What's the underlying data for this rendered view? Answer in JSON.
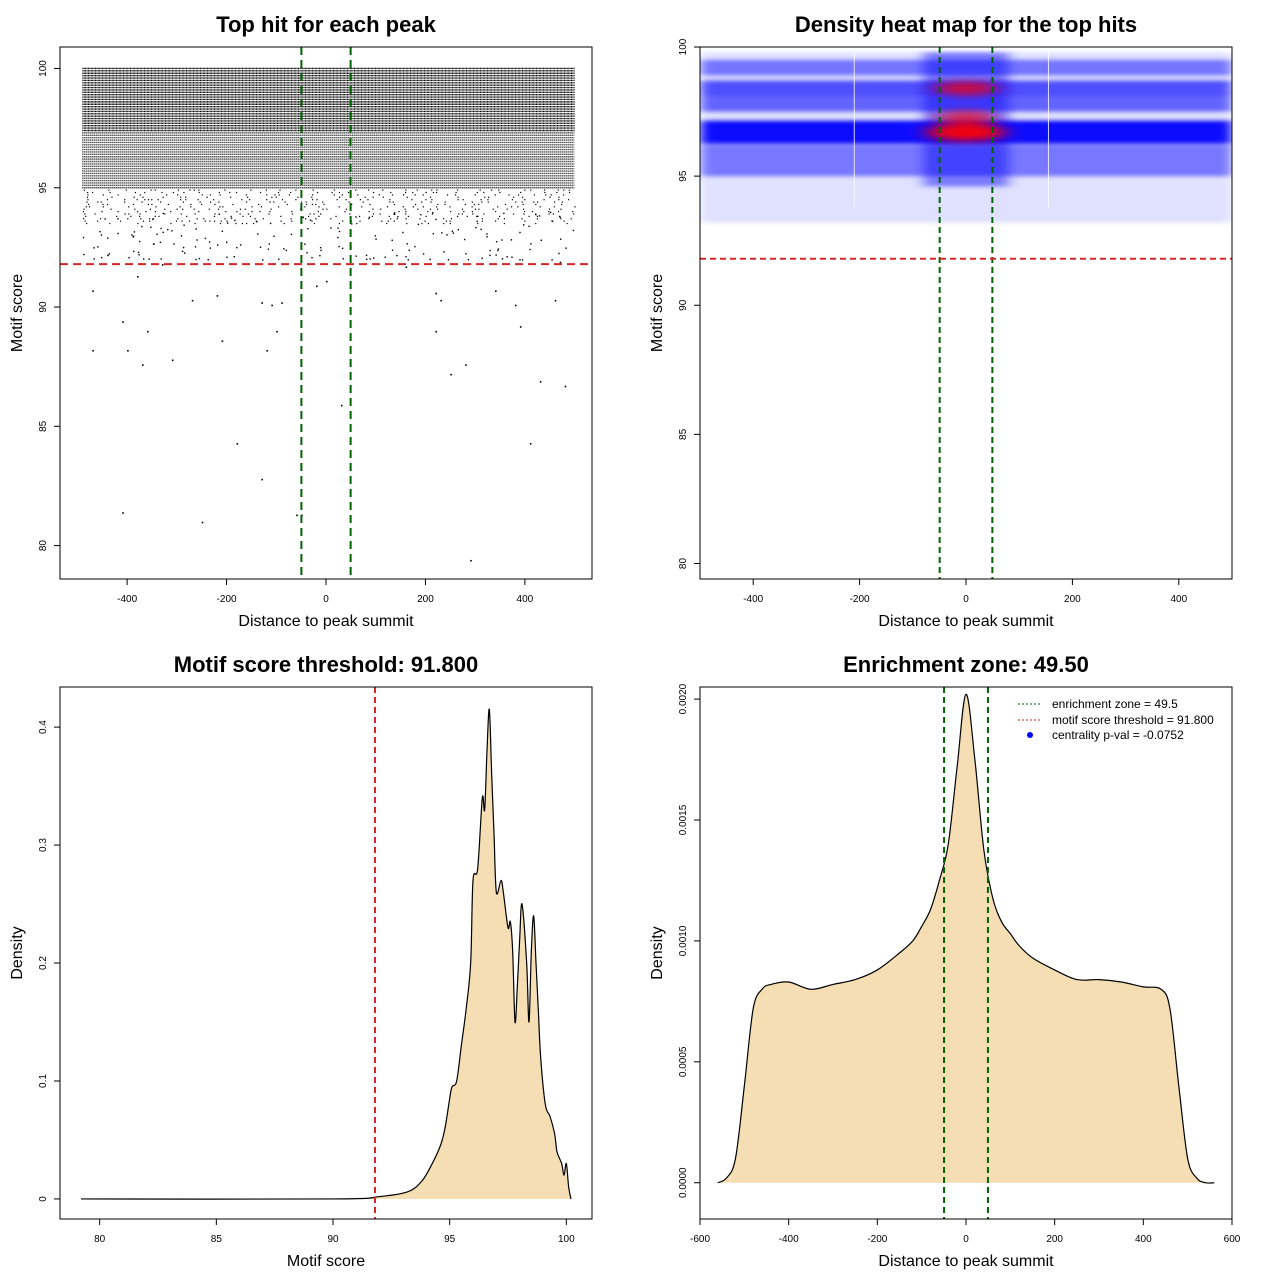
{
  "colors": {
    "green_line": "#006400",
    "red_line": "#d62728",
    "fill": "#f5deb3",
    "heat_low": "#0000ff",
    "heat_high": "#ff0000"
  },
  "chart_data": [
    {
      "id": "scatter",
      "type": "scatter",
      "title": "Top hit for each peak",
      "xlabel": "Distance to peak summit",
      "ylabel": "Motif score",
      "xlim": [
        -535,
        535
      ],
      "ylim": [
        78.6,
        100.9
      ],
      "xticks": [
        -400,
        -200,
        0,
        200,
        400
      ],
      "yticks": [
        80,
        85,
        90,
        95,
        100
      ],
      "dense_region": {
        "x": [
          -490,
          500
        ],
        "y_top": 100,
        "y_bottom": 93.5
      },
      "sparse_points": [
        [
          -470,
          90.7
        ],
        [
          -470,
          88.2
        ],
        [
          -410,
          89.4
        ],
        [
          -400,
          88.2
        ],
        [
          -380,
          91.3
        ],
        [
          -370,
          87.6
        ],
        [
          -360,
          89.0
        ],
        [
          -310,
          87.8
        ],
        [
          -270,
          90.3
        ],
        [
          -220,
          90.5
        ],
        [
          -210,
          88.6
        ],
        [
          -130,
          90.2
        ],
        [
          -110,
          90.1
        ],
        [
          -100,
          89.0
        ],
        [
          -90,
          90.2
        ],
        [
          -120,
          88.2
        ],
        [
          -180,
          84.3
        ],
        [
          -130,
          82.8
        ],
        [
          -60,
          81.3
        ],
        [
          -50,
          81.3
        ],
        [
          -410,
          81.4
        ],
        [
          -250,
          81.0
        ],
        [
          30,
          85.9
        ],
        [
          -20,
          90.9
        ],
        [
          0,
          91.1
        ],
        [
          220,
          90.6
        ],
        [
          230,
          90.3
        ],
        [
          220,
          89.0
        ],
        [
          250,
          87.2
        ],
        [
          280,
          87.6
        ],
        [
          340,
          90.7
        ],
        [
          380,
          90.1
        ],
        [
          390,
          89.2
        ],
        [
          430,
          86.9
        ],
        [
          460,
          90.3
        ],
        [
          480,
          86.7
        ],
        [
          410,
          84.3
        ],
        [
          290,
          79.4
        ],
        [
          -440,
          92.2
        ],
        [
          -330,
          91.8
        ],
        [
          160,
          91.7
        ],
        [
          470,
          91.9
        ]
      ],
      "hlines": [
        91.8
      ],
      "vlines": [
        -49.5,
        49.5
      ]
    },
    {
      "id": "heatmap",
      "type": "heatmap",
      "title": "Density heat map for the top hits",
      "xlabel": "Distance to peak summit",
      "ylabel": "Motif score",
      "xlim": [
        -500,
        500
      ],
      "ylim": [
        79.4,
        100
      ],
      "xticks": [
        -400,
        -200,
        0,
        200,
        400
      ],
      "yticks": [
        80,
        85,
        90,
        95,
        100
      ],
      "bands": [
        {
          "y": 96.7,
          "w": 0.45,
          "i": 1.0
        },
        {
          "y": 98.4,
          "w": 0.3,
          "i": 0.5
        },
        {
          "y": 97.8,
          "w": 0.3,
          "i": 0.35
        },
        {
          "y": 99.2,
          "w": 0.3,
          "i": 0.22
        },
        {
          "y": 95.6,
          "w": 0.6,
          "i": 0.2
        }
      ],
      "hot_spots": [
        {
          "x": 0,
          "y": 96.7,
          "i": 1.0
        },
        {
          "x": 0,
          "y": 98.4,
          "i": 0.75
        },
        {
          "x": 0,
          "y": 97.3,
          "i": 0.65
        }
      ],
      "hlines": [
        91.8
      ],
      "vlines": [
        -49.5,
        49.5
      ]
    },
    {
      "id": "score-density",
      "type": "area",
      "title": "Motif score threshold: 91.800",
      "xlabel": "Motif score",
      "ylabel": "Density",
      "xlim": [
        78.3,
        101.1
      ],
      "ylim": [
        -0.017,
        0.434
      ],
      "xticks": [
        80,
        85,
        90,
        95,
        100
      ],
      "yticks": [
        0.0,
        0.1,
        0.2,
        0.3,
        0.4
      ],
      "x": [
        79.2,
        90,
        92,
        93.2,
        93.8,
        94.2,
        94.6,
        94.8,
        95.0,
        95.1,
        95.3,
        95.5,
        95.7,
        95.9,
        96.0,
        96.2,
        96.4,
        96.5,
        96.6,
        96.7,
        96.8,
        96.9,
        97.0,
        97.2,
        97.3,
        97.5,
        97.6,
        97.7,
        97.8,
        97.9,
        98.0,
        98.1,
        98.3,
        98.4,
        98.5,
        98.6,
        98.7,
        98.8,
        98.9,
        99.1,
        99.3,
        99.5,
        99.6,
        99.8,
        99.9,
        100.0,
        100.1,
        100.2
      ],
      "y": [
        0.0,
        0.0,
        0.002,
        0.006,
        0.015,
        0.028,
        0.045,
        0.06,
        0.085,
        0.095,
        0.1,
        0.13,
        0.16,
        0.2,
        0.27,
        0.28,
        0.34,
        0.33,
        0.38,
        0.415,
        0.36,
        0.31,
        0.26,
        0.27,
        0.26,
        0.23,
        0.235,
        0.21,
        0.15,
        0.18,
        0.22,
        0.25,
        0.2,
        0.15,
        0.21,
        0.24,
        0.2,
        0.16,
        0.12,
        0.08,
        0.07,
        0.055,
        0.04,
        0.03,
        0.02,
        0.03,
        0.01,
        0.0
      ],
      "vlines": [
        91.8
      ]
    },
    {
      "id": "distance-density",
      "type": "area",
      "title": "Enrichment zone: 49.50",
      "xlabel": "Distance to peak summit",
      "ylabel": "Density",
      "xlim": [
        -600,
        600
      ],
      "ylim": [
        -0.00015,
        0.00205
      ],
      "xticks": [
        -600,
        -400,
        -200,
        0,
        200,
        400,
        600
      ],
      "yticks": [
        0.0,
        0.0005,
        0.001,
        0.0015,
        0.002
      ],
      "ytick_labels": [
        "0.0000",
        "0.0005",
        "0.0010",
        "0.0015",
        "0.0020"
      ],
      "x": [
        -560,
        -540,
        -520,
        -500,
        -480,
        -460,
        -440,
        -400,
        -350,
        -300,
        -250,
        -200,
        -150,
        -120,
        -100,
        -80,
        -60,
        -40,
        -20,
        0,
        20,
        40,
        60,
        80,
        100,
        120,
        150,
        200,
        250,
        300,
        350,
        400,
        440,
        460,
        480,
        500,
        520,
        540,
        560
      ],
      "y": [
        0.0,
        2e-05,
        0.0001,
        0.0004,
        0.00072,
        0.0008,
        0.00082,
        0.00083,
        0.0008,
        0.00082,
        0.00084,
        0.00088,
        0.00095,
        0.001,
        0.00106,
        0.00113,
        0.00125,
        0.0014,
        0.00172,
        0.00202,
        0.00175,
        0.00138,
        0.00118,
        0.00108,
        0.00103,
        0.00098,
        0.00093,
        0.00088,
        0.00084,
        0.00084,
        0.00083,
        0.00081,
        0.0008,
        0.00072,
        0.0004,
        0.0001,
        2e-05,
        0.0,
        0.0
      ],
      "vlines": [
        -49.5,
        49.5
      ],
      "legend": {
        "position": "top-right",
        "items": [
          {
            "label": "enrichment zone = 49.5",
            "color": "#006400",
            "style": "dotted"
          },
          {
            "label": "motif score threshold = 91.800",
            "color": "#d62728",
            "style": "dotted"
          },
          {
            "label": "centrality p-val = -0.0752",
            "color": "#0000ff",
            "style": "point"
          }
        ]
      }
    }
  ]
}
